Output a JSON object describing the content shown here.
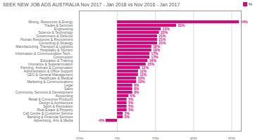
{
  "chart_data": {
    "type": "bar",
    "orientation": "horizontal",
    "title": "SEEK NEW JOB ADS AUSTRALIA Nov 2017 - Jan 2018 vs Nov 2016 - Jan 2017",
    "categories": [
      "Mining, Resources & Energy",
      "Trades & Services",
      "Engineering",
      "Science & Technology",
      "Government & Defence",
      "Human Resources & Recruitment",
      "Consulting & Strategy",
      "Manufacturing, Transport & Logistics",
      "Hospitality & Tourism",
      "Information & Communication Tech...",
      "Construction",
      "Education & Training",
      "Insurance & Superannuation",
      "Farming, Animals & Conservation",
      "Administration & Office Support",
      "CEO & General Management",
      "Healthcare & Medical",
      "Marketing & Communications",
      "Legal",
      "Sales",
      "Community Services & Development",
      "Accounting",
      "Retail & Consumer Products",
      "Design & Architecture",
      "Sport & Recreation",
      "Real Estate & Property",
      "Call Centre & Customer Service",
      "Banking & Financial Services",
      "Advertising, Arts & Media"
    ],
    "series": [
      {
        "name": "%",
        "color": "#e5007d",
        "values": [
          64,
          31,
          23,
          22,
          21,
          21,
          21,
          18,
          18,
          17,
          17,
          16,
          15,
          12,
          11,
          11,
          10,
          10,
          8,
          8,
          8,
          6,
          5,
          5,
          5,
          5,
          3,
          3,
          -6
        ],
        "value_labels": [
          "64%",
          "31%",
          "23%",
          "22%",
          "21%",
          "21%",
          "21%",
          "18%",
          "18%",
          "17%",
          "17%",
          "16%",
          "15%",
          "12%",
          "11%",
          "11%",
          "10%",
          "10%",
          "8%",
          "8%",
          "8%",
          "6%",
          "5%",
          "5%",
          "5%",
          "5%",
          "3%",
          "3%",
          "-6%"
        ]
      }
    ],
    "xlim": [
      -20,
      65
    ],
    "xticks": [
      {
        "value": -20,
        "label": "-20%"
      },
      {
        "value": 0,
        "label": "0%"
      },
      {
        "value": 20,
        "label": "20%"
      },
      {
        "value": 40,
        "label": "40%"
      },
      {
        "value": 60,
        "label": "60%"
      }
    ],
    "grid": true,
    "data_labels": true,
    "legend": "upper right"
  }
}
